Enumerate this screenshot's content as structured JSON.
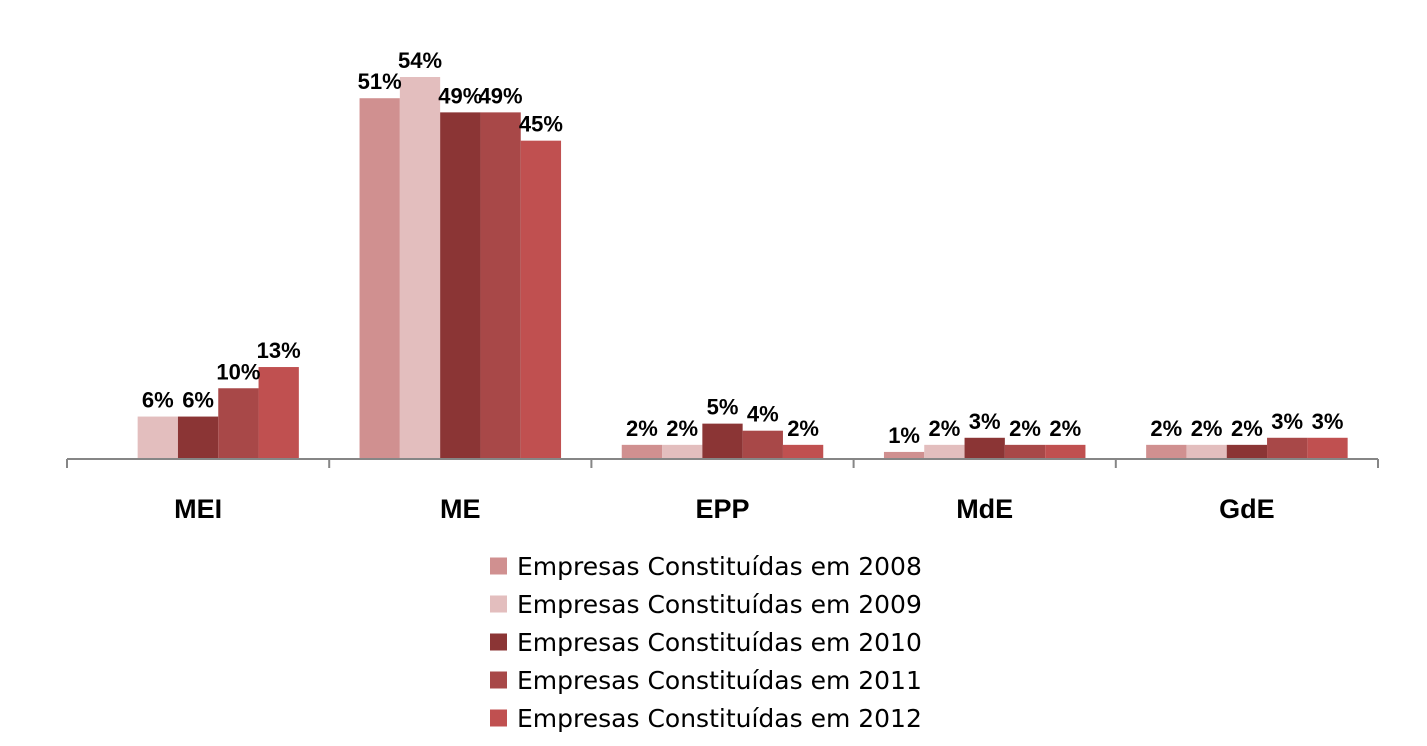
{
  "chart_data": {
    "type": "bar",
    "categories": [
      "MEI",
      "ME",
      "EPP",
      "MdE",
      "GdE"
    ],
    "series": [
      {
        "name": "Empresas Constituídas em 2008",
        "color": "#d09090",
        "values": [
          null,
          51,
          2,
          1,
          2
        ],
        "labels": [
          "",
          "51%",
          "2%",
          "1%",
          "2%"
        ]
      },
      {
        "name": "Empresas Constituídas em 2009",
        "color": "#e3bebe",
        "values": [
          6,
          54,
          2,
          2,
          2
        ],
        "labels": [
          "6%",
          "54%",
          "2%",
          "2%",
          "2%"
        ]
      },
      {
        "name": "Empresas Constituídas em 2010",
        "color": "#8b3535",
        "values": [
          6,
          49,
          5,
          3,
          2
        ],
        "labels": [
          "6%",
          "49%",
          "5%",
          "3%",
          "2%"
        ]
      },
      {
        "name": "Empresas Constituídas em 2011",
        "color": "#a84848",
        "values": [
          10,
          49,
          4,
          2,
          3
        ],
        "labels": [
          "10%",
          "49%",
          "4%",
          "2%",
          "3%"
        ]
      },
      {
        "name": "Empresas Constituídas em 2012",
        "color": "#c05050",
        "values": [
          13,
          45,
          2,
          2,
          3
        ],
        "labels": [
          "13%",
          "45%",
          "2%",
          "2%",
          "3%"
        ]
      }
    ],
    "ylim": [
      0,
      55
    ],
    "grid": false,
    "legend_position": "bottom"
  }
}
